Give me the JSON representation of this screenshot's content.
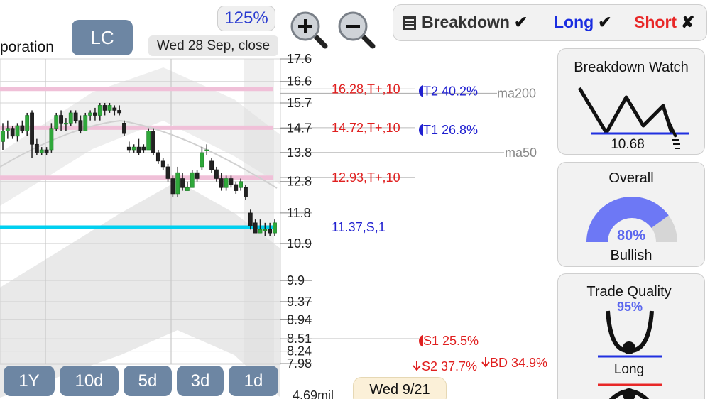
{
  "header": {
    "title_fragment": "poration",
    "ticker": "LC",
    "date_label": "Wed 28 Sep, close",
    "zoom_level": "125%"
  },
  "toolbar": {
    "zoom_in_icon": "magnifier-plus-icon",
    "zoom_out_icon": "magnifier-minus-icon",
    "breakdown_label": "Breakdown",
    "long_label": "Long",
    "short_label": "Short",
    "breakdown_mark": "✔",
    "long_mark": "✔",
    "short_mark": "✘"
  },
  "periods": [
    "1Y",
    "10d",
    "5d",
    "3d",
    "1d"
  ],
  "footer": {
    "date_bubble": "Wed 9/21",
    "volume_label": "4.69mil"
  },
  "cards": {
    "breakdown_watch": {
      "title": "Breakdown Watch",
      "value": "10.68"
    },
    "overall": {
      "title": "Overall",
      "value": "80%",
      "sentiment": "Bullish",
      "fraction": 0.8
    },
    "trade_quality": {
      "title": "Trade Quality",
      "value": "95%",
      "direction": "Long",
      "fraction": 0.95
    }
  },
  "colors": {
    "accent": "#6d86a3",
    "up": "#2fa83a",
    "down": "#222222",
    "support": "#00d0f0",
    "resistance": "#f0c0d8",
    "red": "#e02020",
    "blue": "#2020d0"
  },
  "chart_data": {
    "type": "candlestick",
    "y_scale": "log",
    "yticks": [
      "17.6",
      "16.6",
      "15.7",
      "14.7",
      "13.8",
      "12.8",
      "11.8",
      "10.9",
      "9.9",
      "9.37",
      "8.94",
      "8.51",
      "8.24",
      "7.98"
    ],
    "ylim": [
      7.98,
      17.6
    ],
    "levels": [
      {
        "price": 16.28,
        "label": "16.28,T+,10",
        "kind": "resistance"
      },
      {
        "price": 14.72,
        "label": "14.72,T+,10",
        "kind": "resistance"
      },
      {
        "price": 12.93,
        "label": "12.93,T+,10",
        "kind": "resistance"
      },
      {
        "price": 11.37,
        "label": "11.37,S,1",
        "kind": "support"
      }
    ],
    "moving_averages": [
      {
        "name": "ma200",
        "value": 16.1
      },
      {
        "name": "ma50",
        "value": 13.8
      }
    ],
    "targets": [
      {
        "label": "T2 40.2%",
        "price": 16.28
      },
      {
        "label": "T1 26.8%",
        "price": 14.72
      }
    ],
    "stops": [
      {
        "label": "S1 25.5%",
        "price": 8.51
      },
      {
        "label": "S2 37.7%",
        "price": 7.98
      },
      {
        "label": "BD 34.9%",
        "price": 7.98
      }
    ],
    "candles": [
      [
        14.2,
        14.9,
        13.9,
        14.6
      ],
      [
        14.6,
        15.0,
        14.3,
        14.7
      ],
      [
        14.7,
        14.8,
        14.3,
        14.4
      ],
      [
        14.4,
        14.9,
        14.2,
        14.8
      ],
      [
        14.8,
        15.0,
        14.5,
        14.6
      ],
      [
        14.6,
        15.3,
        14.4,
        15.2
      ],
      [
        15.3,
        15.4,
        13.6,
        14.1
      ],
      [
        14.1,
        14.3,
        13.7,
        13.8
      ],
      [
        13.8,
        14.0,
        13.7,
        13.9
      ],
      [
        13.9,
        14.0,
        13.7,
        13.8
      ],
      [
        13.9,
        14.9,
        13.8,
        14.7
      ],
      [
        14.7,
        15.3,
        14.6,
        15.2
      ],
      [
        15.2,
        15.4,
        14.6,
        14.9
      ],
      [
        14.9,
        15.1,
        14.6,
        14.9
      ],
      [
        14.9,
        15.4,
        14.8,
        15.3
      ],
      [
        15.3,
        15.4,
        14.9,
        15.0
      ],
      [
        15.0,
        15.2,
        14.5,
        14.6
      ],
      [
        14.6,
        15.3,
        14.6,
        15.2
      ],
      [
        15.2,
        15.4,
        15.0,
        15.3
      ],
      [
        15.3,
        15.5,
        15.0,
        15.2
      ],
      [
        15.2,
        15.7,
        15.0,
        15.6
      ],
      [
        15.6,
        15.7,
        15.2,
        15.4
      ],
      [
        15.4,
        15.7,
        15.3,
        15.6
      ],
      [
        15.5,
        15.6,
        15.2,
        15.4
      ],
      [
        15.4,
        15.6,
        15.2,
        15.3
      ],
      [
        14.9,
        15.0,
        14.4,
        14.5
      ],
      [
        14.0,
        14.2,
        13.8,
        13.9
      ],
      [
        13.9,
        14.1,
        13.8,
        14.0
      ],
      [
        14.0,
        14.3,
        13.7,
        13.8
      ],
      [
        14.0,
        14.1,
        13.8,
        13.9
      ],
      [
        13.9,
        14.7,
        13.9,
        14.6
      ],
      [
        14.6,
        14.7,
        13.7,
        13.8
      ],
      [
        13.8,
        13.9,
        13.4,
        13.5
      ],
      [
        13.5,
        13.6,
        13.2,
        13.3
      ],
      [
        13.3,
        13.4,
        12.8,
        12.9
      ],
      [
        12.9,
        13.0,
        12.3,
        12.4
      ],
      [
        12.4,
        13.3,
        12.3,
        13.1
      ],
      [
        12.9,
        13.1,
        12.5,
        12.6
      ],
      [
        12.5,
        12.8,
        12.5,
        12.6
      ],
      [
        12.6,
        13.2,
        12.6,
        13.1
      ],
      [
        13.1,
        13.2,
        12.8,
        12.9
      ],
      [
        13.3,
        14.0,
        13.2,
        13.8
      ],
      [
        13.9,
        14.1,
        13.7,
        13.9
      ],
      [
        13.5,
        13.6,
        13.1,
        13.2
      ],
      [
        13.2,
        13.3,
        12.8,
        12.9
      ],
      [
        12.9,
        13.1,
        12.5,
        12.6
      ],
      [
        12.6,
        13.0,
        12.5,
        12.9
      ],
      [
        12.9,
        13.0,
        12.6,
        12.7
      ],
      [
        12.7,
        12.8,
        12.4,
        12.5
      ],
      [
        12.6,
        12.9,
        12.5,
        12.8
      ],
      [
        12.6,
        12.7,
        12.2,
        12.3
      ],
      [
        11.8,
        11.9,
        11.3,
        11.4
      ],
      [
        11.5,
        11.6,
        11.2,
        11.2
      ],
      [
        11.2,
        11.6,
        11.2,
        11.3
      ],
      [
        11.3,
        11.5,
        11.1,
        11.3
      ],
      [
        11.3,
        11.5,
        11.1,
        11.2
      ],
      [
        11.2,
        11.6,
        11.1,
        11.5
      ]
    ]
  }
}
